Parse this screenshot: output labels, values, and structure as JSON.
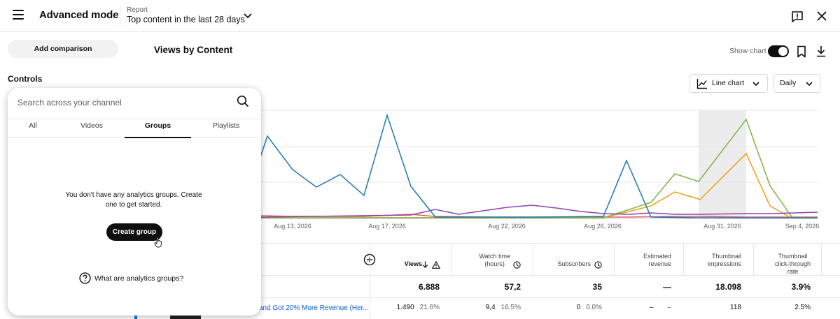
{
  "header": {
    "app_title": "Advanced mode",
    "report_caption": "Report",
    "report_value": "Top content in the last 28 days"
  },
  "toolbar": {
    "add_comparison": "Add comparison",
    "views_title": "Views by Content",
    "show_chart_label": "Show chart",
    "show_chart_on": true
  },
  "controls_label": "Controls",
  "chart_controls": {
    "chart_type": "Line chart",
    "granularity": "Daily"
  },
  "panel": {
    "search_placeholder": "Search across your channel",
    "tabs": [
      {
        "label": "All",
        "active": false
      },
      {
        "label": "Videos",
        "active": false
      },
      {
        "label": "Groups",
        "active": true
      },
      {
        "label": "Playlists",
        "active": false
      }
    ],
    "empty_message": "You don't have any analytics groups. Create one to get started.",
    "create_button": "Create group",
    "help_link": "What are analytics groups?"
  },
  "table": {
    "columns": [
      {
        "key": "views",
        "label": "Views"
      },
      {
        "key": "watch_time",
        "label": "Watch time\n(hours)"
      },
      {
        "key": "subscribers",
        "label": "Subscribers"
      },
      {
        "key": "revenue",
        "label": "Estimated\nrevenue"
      },
      {
        "key": "impressions",
        "label": "Thumbnail\nimpressions"
      },
      {
        "key": "ctr",
        "label": "Thumbnail\nclick-through\nrate"
      }
    ],
    "totals": {
      "views": "6.888",
      "watch_time": "57,2",
      "subscribers": "35",
      "revenue": "—",
      "impressions": "18.098",
      "ctr": "3.9%"
    },
    "row1": {
      "title": "and Got 20% More Revenue (Her...",
      "views": "1.490",
      "views_pct": "21.6%",
      "watch_time": "9,4",
      "watch_pct": "16.5%",
      "subscribers": "0",
      "subscribers_pct": "0.0%",
      "revenue": "–",
      "revenue_pct": "–",
      "impressions": "118",
      "ctr": "2.5%"
    }
  },
  "chart_data": {
    "type": "line",
    "x_tick_labels": [
      "Aug 13, 2026",
      "Aug 17, 2026",
      "Aug 22, 2026",
      "Aug 26, 2026",
      "Aug 31, 2026",
      "Sep 4, 2026"
    ],
    "series_colors": [
      "#1f77b4",
      "#8e44ad",
      "#7cb342",
      "#f39c12",
      "#e55b5b"
    ],
    "grid": true,
    "highlight_region": "Aug 30 – Aug 31, 2026"
  }
}
